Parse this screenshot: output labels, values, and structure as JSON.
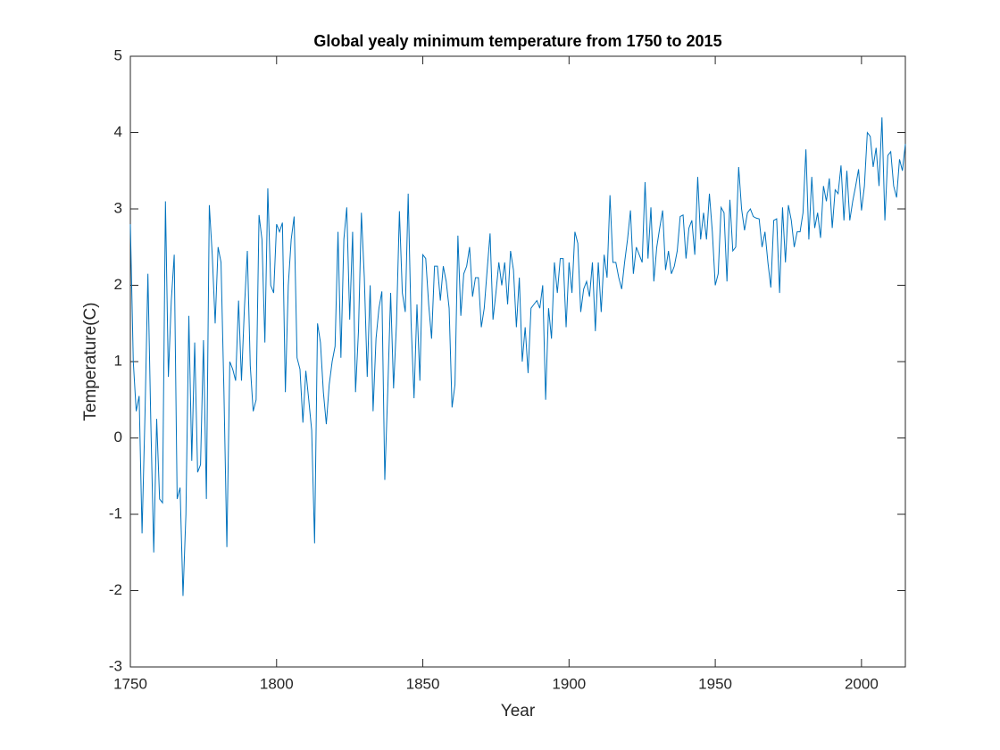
{
  "chart_data": {
    "type": "line",
    "title": "Global yealy minimum temperature from 1750 to 2015",
    "xlabel": "Year",
    "ylabel": "Temperature(C)",
    "color": "#0072bd",
    "xlim": [
      1750,
      2015
    ],
    "xticks": [
      1750,
      1800,
      1850,
      1900,
      1950,
      2000
    ],
    "ylim": [
      -3,
      5
    ],
    "yticks": [
      -3,
      -2,
      -1,
      0,
      1,
      2,
      3,
      4,
      5
    ],
    "x": [
      1750,
      1751,
      1752,
      1753,
      1754,
      1755,
      1756,
      1757,
      1758,
      1759,
      1760,
      1761,
      1762,
      1763,
      1764,
      1765,
      1766,
      1767,
      1768,
      1769,
      1770,
      1771,
      1772,
      1773,
      1774,
      1775,
      1776,
      1777,
      1778,
      1779,
      1780,
      1781,
      1782,
      1783,
      1784,
      1785,
      1786,
      1787,
      1788,
      1789,
      1790,
      1791,
      1792,
      1793,
      1794,
      1795,
      1796,
      1797,
      1798,
      1799,
      1800,
      1801,
      1802,
      1803,
      1804,
      1805,
      1806,
      1807,
      1808,
      1809,
      1810,
      1811,
      1812,
      1813,
      1814,
      1815,
      1816,
      1817,
      1818,
      1819,
      1820,
      1821,
      1822,
      1823,
      1824,
      1825,
      1826,
      1827,
      1828,
      1829,
      1830,
      1831,
      1832,
      1833,
      1834,
      1835,
      1836,
      1837,
      1838,
      1839,
      1840,
      1841,
      1842,
      1843,
      1844,
      1845,
      1846,
      1847,
      1848,
      1849,
      1850,
      1851,
      1852,
      1853,
      1854,
      1855,
      1856,
      1857,
      1858,
      1859,
      1860,
      1861,
      1862,
      1863,
      1864,
      1865,
      1866,
      1867,
      1868,
      1869,
      1870,
      1871,
      1872,
      1873,
      1874,
      1875,
      1876,
      1877,
      1878,
      1879,
      1880,
      1881,
      1882,
      1883,
      1884,
      1885,
      1886,
      1887,
      1888,
      1889,
      1890,
      1891,
      1892,
      1893,
      1894,
      1895,
      1896,
      1897,
      1898,
      1899,
      1900,
      1901,
      1902,
      1903,
      1904,
      1905,
      1906,
      1907,
      1908,
      1909,
      1910,
      1911,
      1912,
      1913,
      1914,
      1915,
      1916,
      1917,
      1918,
      1919,
      1920,
      1921,
      1922,
      1923,
      1924,
      1925,
      1926,
      1927,
      1928,
      1929,
      1930,
      1931,
      1932,
      1933,
      1934,
      1935,
      1936,
      1937,
      1938,
      1939,
      1940,
      1941,
      1942,
      1943,
      1944,
      1945,
      1946,
      1947,
      1948,
      1949,
      1950,
      1951,
      1952,
      1953,
      1954,
      1955,
      1956,
      1957,
      1958,
      1959,
      1960,
      1961,
      1962,
      1963,
      1964,
      1965,
      1966,
      1967,
      1968,
      1969,
      1970,
      1971,
      1972,
      1973,
      1974,
      1975,
      1976,
      1977,
      1978,
      1979,
      1980,
      1981,
      1982,
      1983,
      1984,
      1985,
      1986,
      1987,
      1988,
      1989,
      1990,
      1991,
      1992,
      1993,
      1994,
      1995,
      1996,
      1997,
      1998,
      1999,
      2000,
      2001,
      2002,
      2003,
      2004,
      2005,
      2006,
      2007,
      2008,
      2009,
      2010,
      2011,
      2012,
      2013,
      2014,
      2015
    ],
    "values": [
      2.8,
      1.0,
      0.35,
      0.55,
      -1.25,
      0.3,
      2.15,
      0.2,
      -1.5,
      0.25,
      -0.8,
      -0.85,
      3.1,
      0.8,
      1.8,
      2.4,
      -0.8,
      -0.65,
      -2.07,
      -1.0,
      1.6,
      -0.3,
      1.25,
      -0.45,
      -0.35,
      1.28,
      -0.8,
      3.05,
      2.4,
      1.5,
      2.5,
      2.3,
      0.6,
      -1.43,
      1.0,
      0.9,
      0.75,
      1.8,
      0.75,
      1.7,
      2.45,
      0.95,
      0.35,
      0.5,
      2.92,
      2.6,
      1.25,
      3.27,
      2.0,
      1.9,
      2.8,
      2.7,
      2.82,
      0.6,
      2.0,
      2.6,
      2.9,
      1.05,
      0.9,
      0.2,
      0.88,
      0.5,
      0.1,
      -1.38,
      1.5,
      1.25,
      0.6,
      0.18,
      0.7,
      1.0,
      1.2,
      2.7,
      1.05,
      2.6,
      3.02,
      1.55,
      2.7,
      0.6,
      1.4,
      2.95,
      2.1,
      0.8,
      2.0,
      0.35,
      1.3,
      1.7,
      1.92,
      -0.55,
      0.6,
      1.9,
      0.65,
      1.5,
      2.97,
      1.9,
      1.65,
      3.2,
      1.5,
      0.52,
      1.75,
      0.75,
      2.4,
      2.35,
      1.75,
      1.3,
      2.25,
      2.25,
      1.8,
      2.25,
      2.05,
      1.7,
      0.4,
      0.7,
      2.65,
      1.6,
      2.15,
      2.25,
      2.5,
      1.85,
      2.1,
      2.1,
      1.45,
      1.7,
      2.2,
      2.68,
      1.55,
      1.9,
      2.3,
      2.0,
      2.3,
      1.75,
      2.45,
      2.2,
      1.45,
      2.1,
      1.0,
      1.45,
      0.85,
      1.7,
      1.75,
      1.8,
      1.7,
      2.0,
      0.5,
      1.7,
      1.3,
      2.3,
      1.9,
      2.35,
      2.35,
      1.45,
      2.3,
      1.9,
      2.7,
      2.55,
      1.65,
      1.95,
      2.05,
      1.85,
      2.3,
      1.4,
      2.3,
      1.65,
      2.4,
      2.1,
      3.18,
      2.3,
      2.3,
      2.1,
      1.95,
      2.3,
      2.6,
      2.98,
      2.15,
      2.5,
      2.4,
      2.3,
      3.35,
      2.35,
      3.02,
      2.05,
      2.5,
      2.75,
      2.98,
      2.2,
      2.45,
      2.15,
      2.25,
      2.45,
      2.9,
      2.92,
      2.35,
      2.75,
      2.85,
      2.4,
      3.42,
      2.6,
      2.95,
      2.6,
      3.2,
      2.7,
      2.0,
      2.15,
      3.02,
      2.95,
      2.05,
      3.12,
      2.45,
      2.5,
      3.55,
      3.0,
      2.72,
      2.95,
      3.0,
      2.9,
      2.88,
      2.87,
      2.5,
      2.7,
      2.3,
      1.97,
      2.85,
      2.87,
      1.9,
      3.02,
      2.3,
      3.05,
      2.85,
      2.5,
      2.7,
      2.7,
      2.95,
      3.78,
      2.6,
      3.42,
      2.75,
      2.95,
      2.62,
      3.3,
      3.1,
      3.4,
      2.75,
      3.25,
      3.2,
      3.57,
      2.85,
      3.5,
      2.85,
      3.1,
      3.3,
      3.52,
      2.98,
      3.3,
      4.0,
      3.95,
      3.55,
      3.8,
      3.3,
      4.2,
      2.85,
      3.7,
      3.75,
      3.3,
      3.15,
      3.65,
      3.5,
      3.85
    ]
  }
}
